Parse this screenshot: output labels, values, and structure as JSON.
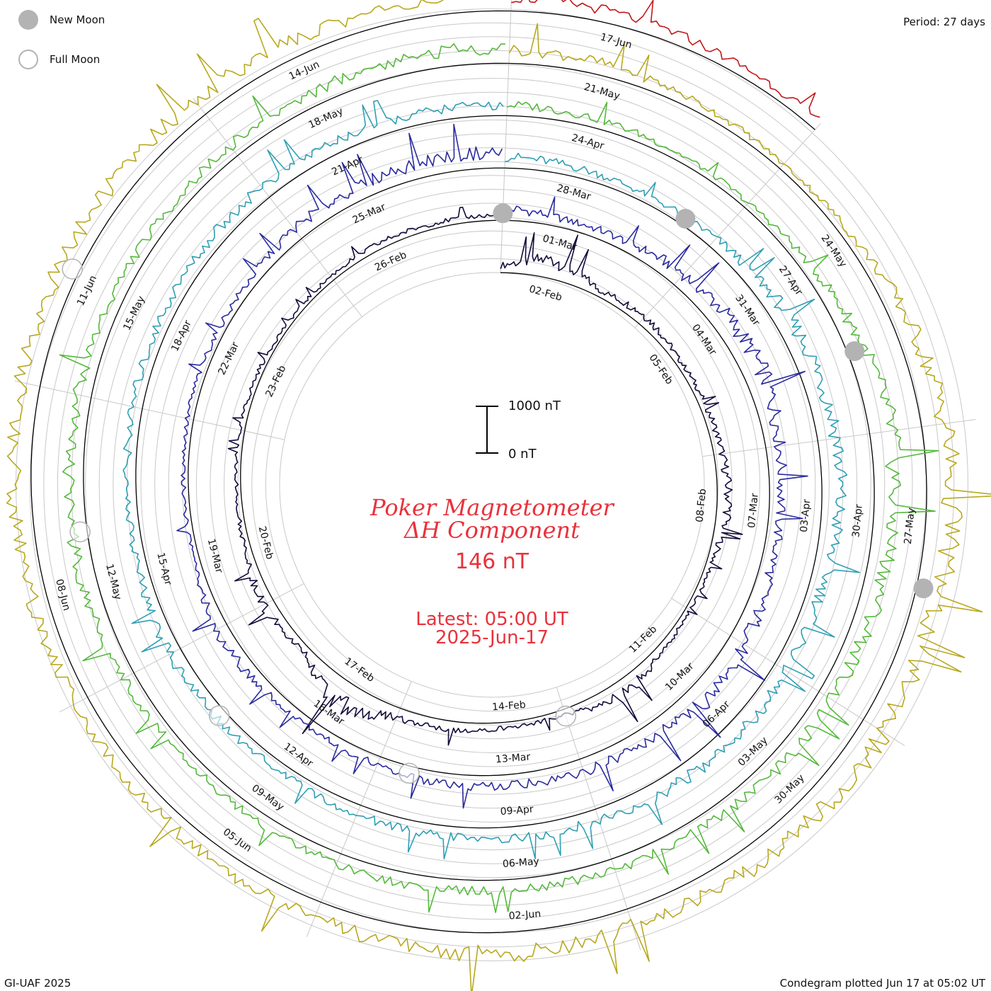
{
  "header": {
    "period": "Period: 27 days"
  },
  "legend": {
    "new_moon": "New Moon",
    "full_moon": "Full Moon",
    "new_moon_color": "#b3b3b3",
    "full_moon_color": "#b3b3b3"
  },
  "footer": {
    "credit": "GI-UAF 2025",
    "plotted": "Condegram plotted Jun 17 at 05:02 UT"
  },
  "center": {
    "title_line1": "Poker Magnetometer",
    "title_line2": "ΔH Component",
    "value": "146 nT",
    "latest": "Latest: 05:00 UT",
    "date": "2025-Jun-17",
    "scale_top": "1000 nT",
    "scale_bottom": "0 nT",
    "text_color": "#e8323c"
  },
  "chart_data": {
    "type": "line",
    "plot_kind": "spiral condegram (27-day rotations)",
    "component": "ΔH",
    "units": "nT",
    "start_date": "2025-Feb-01",
    "end_date": "2025-Jun-17",
    "period_days": 27,
    "scale_nT": [
      0,
      1000
    ],
    "latest_value_nT": 146,
    "rotations": [
      {
        "color": "#140a3a",
        "dates": [
          "02-Feb",
          "05-Feb",
          "08-Feb",
          "11-Feb",
          "14-Feb",
          "17-Feb",
          "20-Feb",
          "23-Feb",
          "26-Feb"
        ],
        "values": [
          150,
          420,
          130,
          220,
          110,
          130,
          180,
          260,
          120,
          90,
          150,
          320,
          110,
          110,
          170,
          210,
          540,
          120,
          260,
          120,
          90,
          100,
          100,
          80,
          100,
          130,
          110
        ]
      },
      {
        "color": "#2a2a9e",
        "dates": [
          "01-Mar",
          "04-Mar",
          "07-Mar",
          "10-Mar",
          "13-Mar",
          "16-Mar",
          "19-Mar",
          "22-Mar",
          "25-Mar"
        ],
        "values": [
          260,
          180,
          200,
          310,
          380,
          420,
          300,
          240,
          260,
          360,
          410,
          320,
          280,
          220,
          240,
          190,
          160,
          210,
          250,
          120,
          100,
          130,
          140,
          160,
          260,
          300,
          330
        ]
      },
      {
        "color": "#2f9fb4",
        "dates": [
          "28-Mar",
          "31-Mar",
          "03-Apr",
          "06-Apr",
          "09-Apr",
          "12-Apr",
          "15-Apr",
          "18-Apr",
          "21-Apr"
        ],
        "values": [
          240,
          200,
          160,
          210,
          300,
          380,
          420,
          360,
          300,
          280,
          320,
          300,
          260,
          240,
          230,
          210,
          180,
          220,
          260,
          200,
          190,
          210,
          230,
          250,
          280,
          260,
          230
        ]
      },
      {
        "color": "#55b83c",
        "dates": [
          "24-Apr",
          "27-Apr",
          "30-Apr",
          "03-May",
          "06-May",
          "09-May",
          "12-May",
          "15-May",
          "18-May"
        ],
        "values": [
          230,
          200,
          150,
          120,
          210,
          360,
          480,
          420,
          380,
          300,
          300,
          260,
          240,
          220,
          250,
          230,
          200,
          180,
          260,
          330,
          320,
          300,
          260,
          220,
          260,
          300,
          330
        ]
      },
      {
        "color": "#b8a81e",
        "dates": [
          "21-May",
          "24-May",
          "27-May",
          "30-May",
          "02-Jun",
          "05-Jun",
          "08-Jun",
          "11-Jun",
          "14-Jun"
        ],
        "values": [
          300,
          260,
          180,
          120,
          180,
          360,
          520,
          560,
          460,
          520,
          480,
          420,
          400,
          460,
          440,
          380,
          320,
          300,
          280,
          330,
          380,
          420,
          420,
          400,
          380,
          360,
          330
        ]
      },
      {
        "color": "#c0181a",
        "dates": [
          "17-Jun"
        ],
        "values": [
          300,
          250,
          200
        ]
      }
    ]
  }
}
